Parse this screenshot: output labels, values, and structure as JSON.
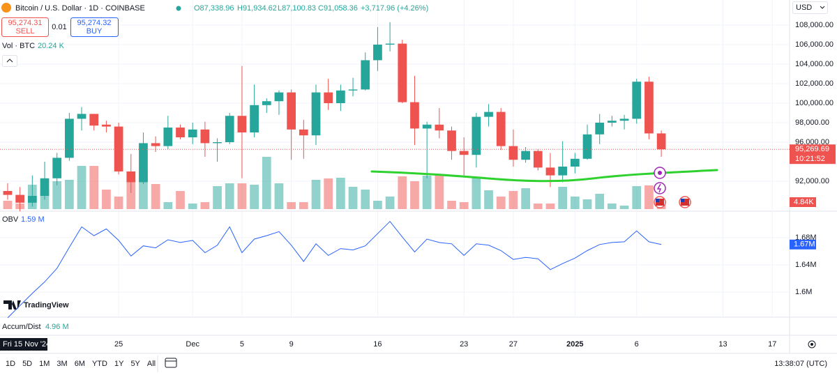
{
  "chart_data": {
    "type": "candlestick",
    "title": "Bitcoin / U.S. Dollar · 1D · COINBASE",
    "legend": {
      "open": "O87,338.96",
      "high": "H91,934.62",
      "low": "L87,100.83",
      "close": "C91,058.36",
      "change": "+3,717.96 (+4.26%)"
    },
    "up_color": "#26a69a",
    "down_color": "#ef5350",
    "xlim": [
      -0.62,
      63.4
    ],
    "xticks": [
      {
        "value": 9,
        "label": "25"
      },
      {
        "value": 15,
        "label": "Dec"
      },
      {
        "value": 19,
        "label": "5"
      },
      {
        "value": 23,
        "label": "9"
      },
      {
        "value": 30,
        "label": "16"
      },
      {
        "value": 37,
        "label": "23"
      },
      {
        "value": 41,
        "label": "27"
      },
      {
        "value": 46,
        "label": "2025"
      },
      {
        "value": 51,
        "label": "6"
      },
      {
        "value": 58,
        "label": "13"
      },
      {
        "value": 62,
        "label": "17"
      }
    ],
    "crosshair_date": "Fri 15 Nov '24",
    "open": [
      91000,
      90600,
      89800,
      90500,
      92300,
      94400,
      98400,
      98900,
      97800,
      97600,
      93000,
      91900,
      95900,
      95600,
      97500,
      96500,
      97300,
      95900,
      96000,
      98700,
      97000,
      99800,
      100200,
      101100,
      97300,
      96700,
      101100,
      100000,
      101300,
      101400,
      104400,
      106000,
      106100,
      100100,
      97400,
      97800,
      97200,
      95100,
      94700,
      98600,
      99100,
      95600,
      94200,
      95100,
      93400,
      92600,
      93500,
      94300,
      96800,
      98000,
      98200,
      98400,
      102200,
      96900
    ],
    "high": [
      91800,
      91400,
      92600,
      94000,
      94900,
      99000,
      99600,
      98900,
      98200,
      98000,
      94800,
      97000,
      96600,
      98700,
      97800,
      98000,
      98100,
      96400,
      99000,
      103800,
      101900,
      100500,
      101300,
      101400,
      98300,
      101900,
      102500,
      101900,
      102600,
      105200,
      107800,
      108300,
      106500,
      102800,
      98100,
      99500,
      97600,
      96500,
      99000,
      99900,
      99500,
      97300,
      95500,
      95300,
      94900,
      96100,
      94900,
      97800,
      98900,
      98700,
      98800,
      102500,
      102700,
      97200
    ],
    "low": [
      90100,
      88900,
      89400,
      90100,
      91600,
      94100,
      97200,
      97200,
      97000,
      92700,
      90800,
      91700,
      95000,
      95300,
      96300,
      95800,
      94500,
      94000,
      95800,
      92300,
      96500,
      99000,
      98800,
      94200,
      94300,
      95700,
      99300,
      99200,
      100700,
      101300,
      103300,
      105300,
      100000,
      95700,
      92300,
      96400,
      94200,
      92600,
      93400,
      97600,
      95200,
      93500,
      93900,
      93100,
      91400,
      91900,
      92800,
      94200,
      95800,
      97600,
      97300,
      97900,
      96300,
      94500
    ],
    "close": [
      90600,
      89800,
      90500,
      92300,
      94400,
      98400,
      98900,
      97700,
      97600,
      93000,
      91900,
      95900,
      95600,
      97500,
      96500,
      97300,
      95900,
      96000,
      98700,
      97000,
      99800,
      100200,
      101100,
      97300,
      96700,
      101100,
      100000,
      101300,
      101400,
      104400,
      106000,
      106100,
      100100,
      97400,
      97800,
      97200,
      95100,
      94700,
      98600,
      99100,
      95600,
      94200,
      95100,
      93400,
      92600,
      93500,
      94300,
      96800,
      98000,
      98200,
      98400,
      102200,
      96900,
      95270
    ],
    "ylim": [
      89143,
      110571
    ],
    "yticks": [
      {
        "value": 108000,
        "label": "108,000.00"
      },
      {
        "value": 106000,
        "label": "106,000.00"
      },
      {
        "value": 104000,
        "label": "104,000.00"
      },
      {
        "value": 102000,
        "label": "102,000.00"
      },
      {
        "value": 100000,
        "label": "100,000.00"
      },
      {
        "value": 98000,
        "label": "98,000.00"
      },
      {
        "value": 96000,
        "label": "96,000.00"
      },
      {
        "value": 92000,
        "label": "92,000.00"
      }
    ],
    "last_price": {
      "value": 95269.69,
      "label": "95,269.69"
    },
    "countdown": "10:21:52",
    "currency": "USD",
    "volume": {
      "label": "Vol · BTC",
      "value_label": "20.24 K",
      "ylim": [
        0,
        145.2
      ],
      "values": [
        5.81,
        3.87,
        16.94,
        13.55,
        19.36,
        20.33,
        30.01,
        30.01,
        13.55,
        8.71,
        19.36,
        26.62,
        17.42,
        4.84,
        12.58,
        3.87,
        4.84,
        15.97,
        17.91,
        17.91,
        16.94,
        36.3,
        17.91,
        4.84,
        4.84,
        20.33,
        21.3,
        21.78,
        15.49,
        13.55,
        5.81,
        8.71,
        22.75,
        19.36,
        23.23,
        24.2,
        5.81,
        4.84,
        21.78,
        13.07,
        8.71,
        12.58,
        14.52,
        3.87,
        3.87,
        15.49,
        8.71,
        6.78,
        10.65,
        3.87,
        2.42,
        15.97,
        16.46,
        4.84
      ],
      "last": {
        "value": 4.84,
        "label": "4.84K"
      }
    },
    "obv": {
      "label": "OBV",
      "value_label": "1.59 M",
      "color": "#2962ff",
      "ylim": [
        1.563,
        1.717
      ],
      "yticks": [
        {
          "value": 1.68,
          "label": "1.68M"
        },
        {
          "value": 1.64,
          "label": "1.64M"
        },
        {
          "value": 1.6,
          "label": "1.6M"
        }
      ],
      "values": [
        1.562,
        1.58,
        1.598,
        1.615,
        1.635,
        1.666,
        1.696,
        1.683,
        1.693,
        1.676,
        1.653,
        1.668,
        1.665,
        1.677,
        1.673,
        1.676,
        1.658,
        1.669,
        1.696,
        1.658,
        1.678,
        1.683,
        1.689,
        1.669,
        1.645,
        1.671,
        1.654,
        1.664,
        1.662,
        1.668,
        1.686,
        1.704,
        1.681,
        1.659,
        1.678,
        1.673,
        1.671,
        1.654,
        1.671,
        1.669,
        1.661,
        1.648,
        1.651,
        1.649,
        1.633,
        1.642,
        1.65,
        1.661,
        1.67,
        1.673,
        1.674,
        1.69,
        1.674,
        1.67
      ],
      "last": {
        "value": 1.67,
        "label": "1.67M"
      }
    },
    "accum_dist": {
      "label": "Accum/Dist",
      "value_label": "4.96 M"
    }
  },
  "ui": {
    "sell_price": "95,274.31",
    "sell": "SELL",
    "spread": "0.01",
    "buy_price": "95,274.32",
    "buy": "BUY",
    "brand": "TradingView",
    "ranges": [
      "1D",
      "5D",
      "1M",
      "3M",
      "6M",
      "YTD",
      "1Y",
      "5Y",
      "All"
    ],
    "clock": "13:38:07 (UTC)"
  }
}
